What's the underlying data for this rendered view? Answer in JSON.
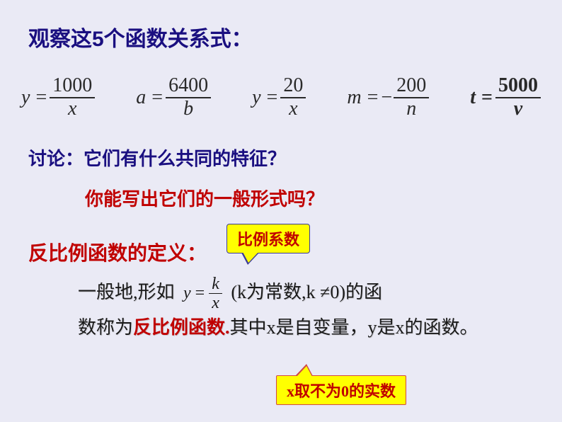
{
  "heading": "观察这5个函数关系式：",
  "equations": [
    {
      "lhs": "y",
      "numerator": "1000",
      "denominator": "x",
      "negative": false,
      "bold": false
    },
    {
      "lhs": "a",
      "numerator": "6400",
      "denominator": "b",
      "negative": false,
      "bold": false
    },
    {
      "lhs": "y",
      "numerator": "20",
      "denominator": "x",
      "negative": false,
      "bold": false
    },
    {
      "lhs": "m",
      "numerator": "200",
      "denominator": "n",
      "negative": true,
      "bold": false
    },
    {
      "lhs": "t",
      "numerator": "5000",
      "denominator": "v",
      "negative": false,
      "bold": true
    }
  ],
  "discuss_prefix": "讨论：",
  "discuss_q1": "它们有什么共同的特征？",
  "discuss_q2": "你能写出它们的一般形式吗？",
  "definition_title": "反比例函数的定义：",
  "callout1": "比例系数",
  "def_body": {
    "pre": "一般地,形如",
    "inline_eq": {
      "lhs": "y",
      "numerator": "k",
      "denominator": "x"
    },
    "mid_k": "(k为常数,k ",
    "ne": "≠",
    "mid_k2": "0)的函",
    "line2_a": "数称为",
    "line2_red": "反比例函数.",
    "line2_b": "其中x是自变量，y是x的函数。"
  },
  "callout2": "x取不为0的实数",
  "colors": {
    "background": "#eaeaf5",
    "heading": "#1a0f80",
    "red": "#c00000",
    "callout_bg": "#ffff00",
    "callout1_border": "#3a3a99",
    "callout2_border": "#d04848",
    "eq_text": "#2a2a2a",
    "body_text": "#1a1a1a"
  },
  "fonts": {
    "heading_size": 30,
    "eq_size": 28,
    "body_size": 26,
    "callout_size": 22,
    "inline_eq_size": 24
  }
}
